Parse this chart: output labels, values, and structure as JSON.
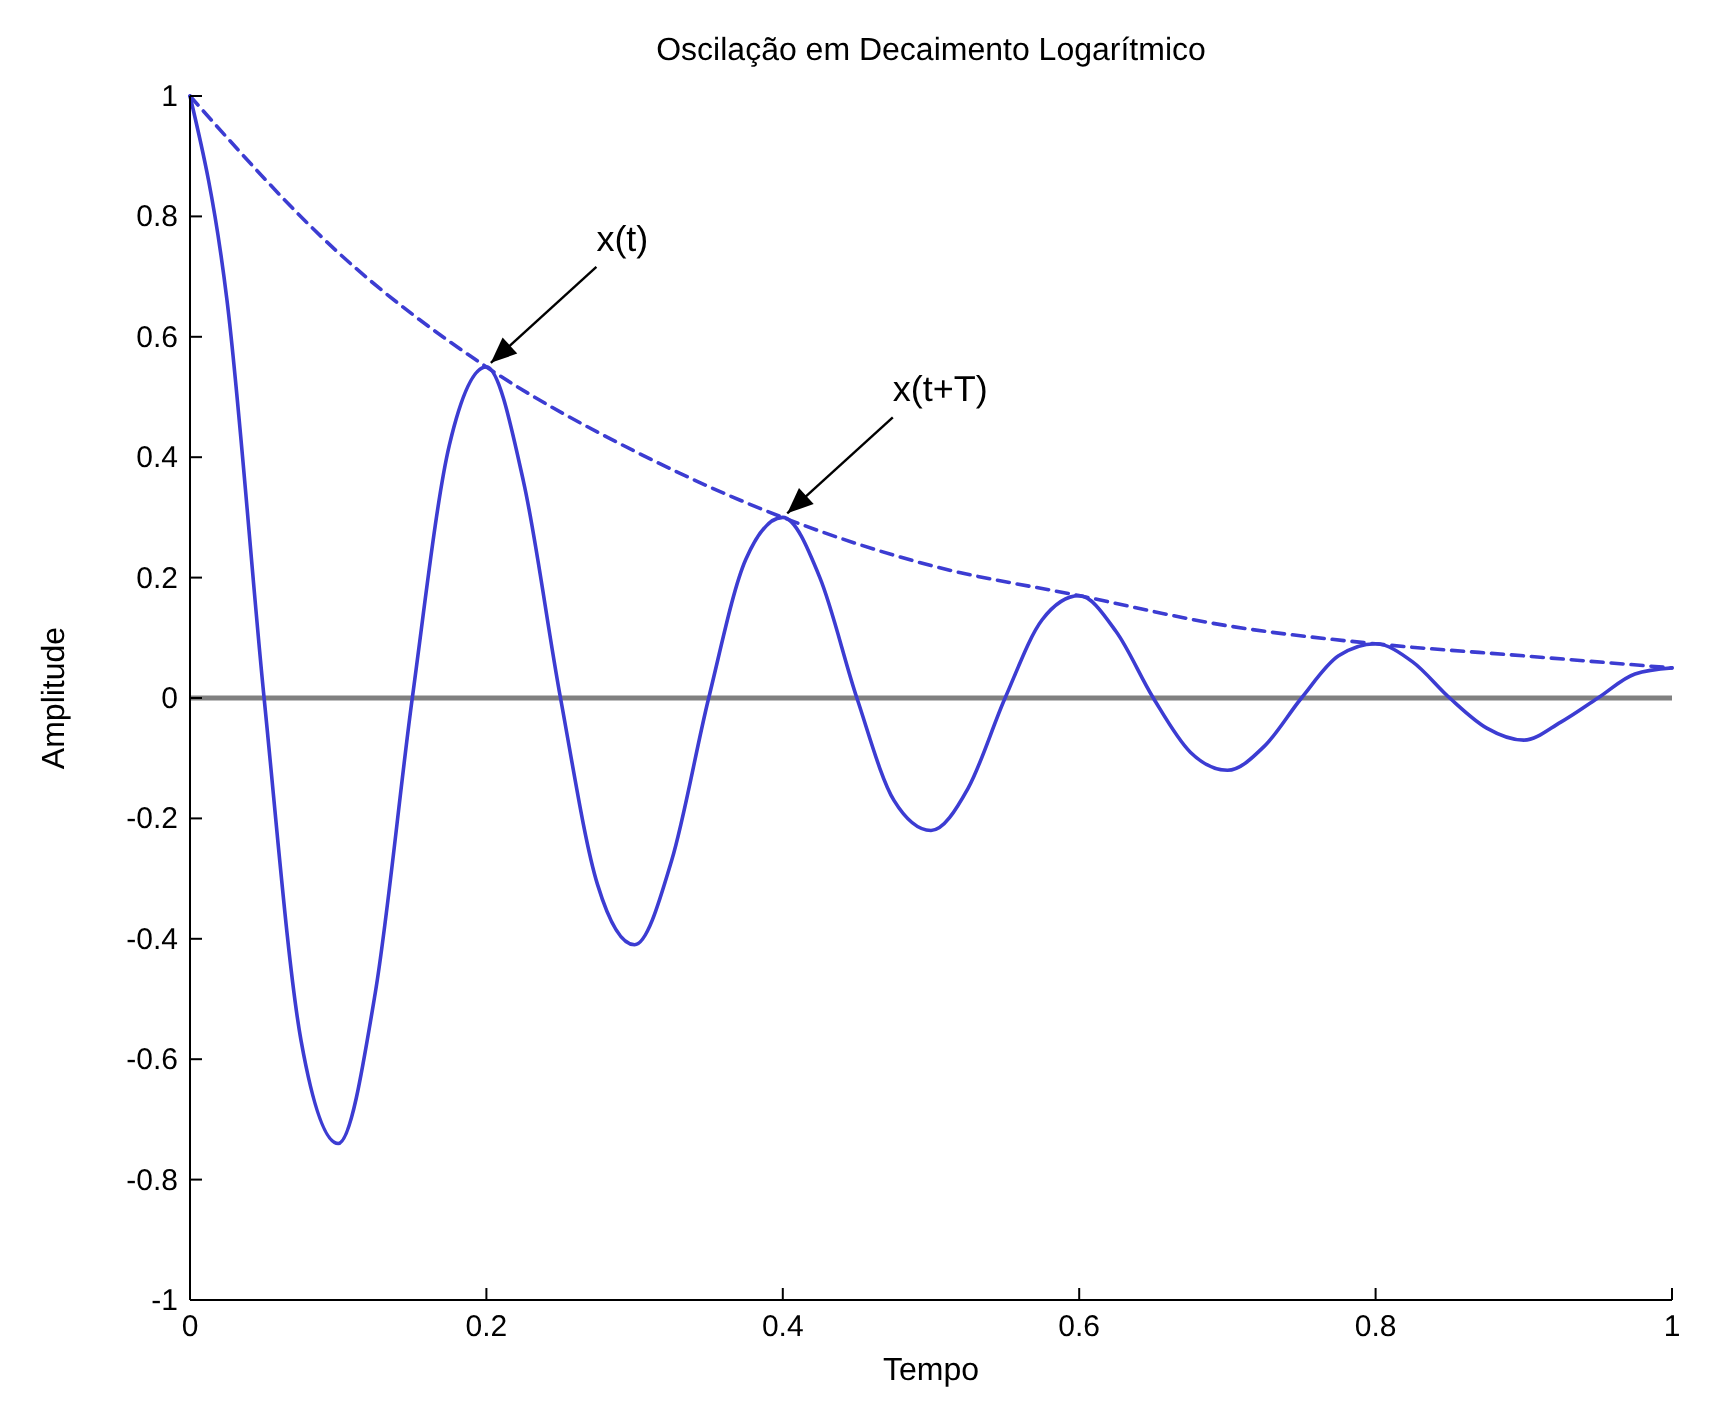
{
  "chart_data": {
    "type": "line",
    "title": "Oscilação em Decaimento Logarítmico",
    "xlabel": "Tempo",
    "ylabel": "Amplitude",
    "xlim": [
      0,
      1
    ],
    "ylim": [
      -1,
      1
    ],
    "xticks": [
      0,
      0.2,
      0.4,
      0.6,
      0.8,
      1
    ],
    "yticks": [
      -1,
      -0.8,
      -0.6,
      -0.4,
      -0.2,
      0,
      0.2,
      0.4,
      0.6,
      0.8,
      1
    ],
    "grid": false,
    "series": [
      {
        "color": "#3c3cd2",
        "line_style": "solid",
        "x": [
          0,
          0.025,
          0.05,
          0.075,
          0.1,
          0.125,
          0.15,
          0.175,
          0.2,
          0.225,
          0.25,
          0.275,
          0.3,
          0.325,
          0.35,
          0.375,
          0.4,
          0.425,
          0.45,
          0.475,
          0.5,
          0.525,
          0.55,
          0.575,
          0.6,
          0.625,
          0.65,
          0.675,
          0.7,
          0.725,
          0.75,
          0.775,
          0.8,
          0.825,
          0.85,
          0.875,
          0.9,
          0.925,
          0.95,
          0.975,
          1
        ],
        "values": [
          1,
          0.66,
          0,
          -0.57,
          -0.74,
          -0.49,
          0,
          0.42,
          0.55,
          0.36,
          0,
          -0.31,
          -0.41,
          -0.27,
          0,
          0.23,
          0.3,
          0.2,
          0,
          -0.17,
          -0.22,
          -0.15,
          0,
          0.13,
          0.17,
          0.11,
          0,
          -0.09,
          -0.12,
          -0.08,
          0,
          0.07,
          0.09,
          0.06,
          0,
          -0.05,
          -0.07,
          -0.04,
          0,
          0.04,
          0.05
        ]
      },
      {
        "color": "#3c3cd2",
        "line_style": "dashed",
        "x": [
          0,
          0.1,
          0.2,
          0.3,
          0.4,
          0.5,
          0.6,
          0.7,
          0.8,
          0.9,
          1
        ],
        "values": [
          1,
          0.74,
          0.55,
          0.41,
          0.3,
          0.22,
          0.17,
          0.12,
          0.09,
          0.07,
          0.05
        ]
      }
    ],
    "ref_lines": [
      {
        "axis": "y",
        "value": 0,
        "color": "#808080",
        "line_style": "solid"
      }
    ],
    "annotations": [
      {
        "text": "x(t)",
        "x": 0.2,
        "y": 0.55
      },
      {
        "text": "x(t+T)",
        "x": 0.4,
        "y": 0.3
      }
    ]
  }
}
